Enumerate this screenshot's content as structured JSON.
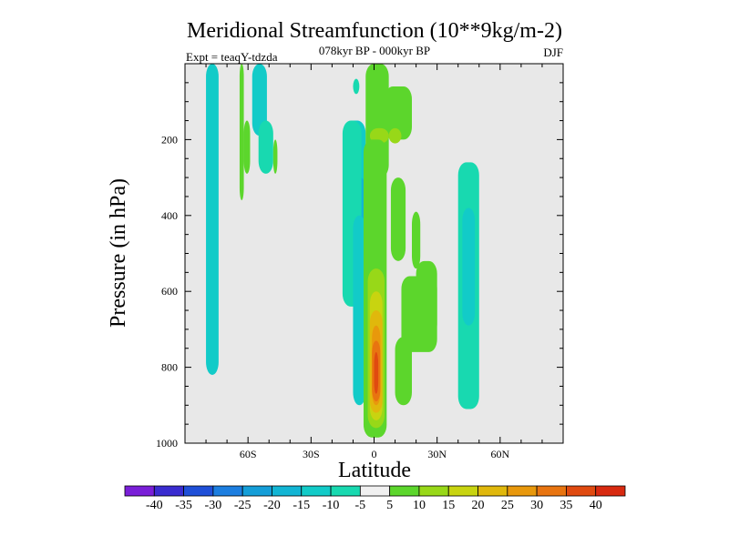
{
  "chart_data": {
    "type": "heatmap",
    "title": "Meridional Streamfunction (10**9kg/m-2)",
    "subtitle": "078kyr BP - 000kyr BP",
    "experiment_label": "Expt = teaqY-tdzda",
    "season": "DJF",
    "xlabel": "Latitude",
    "ylabel": "Pressure (in hPa)",
    "xlim": [
      -90,
      90
    ],
    "ylim": [
      1000,
      0
    ],
    "x_ticks": [
      {
        "value": -60,
        "label": "60S"
      },
      {
        "value": -30,
        "label": "30S"
      },
      {
        "value": 0,
        "label": "0"
      },
      {
        "value": 30,
        "label": "30N"
      },
      {
        "value": 60,
        "label": "60N"
      }
    ],
    "y_ticks": [
      {
        "value": 200,
        "label": "200"
      },
      {
        "value": 400,
        "label": "400"
      },
      {
        "value": 600,
        "label": "600"
      },
      {
        "value": 800,
        "label": "800"
      },
      {
        "value": 1000,
        "label": "1000"
      }
    ],
    "colorbar": {
      "levels": [
        "-40",
        "-35",
        "-30",
        "-25",
        "-20",
        "-15",
        "-10",
        "-5",
        "5",
        "10",
        "15",
        "20",
        "25",
        "30",
        "35",
        "40"
      ],
      "colors": [
        "#7a1fd8",
        "#3a2cd0",
        "#1f4fd8",
        "#1c7ee0",
        "#149ed8",
        "#12b5d4",
        "#12cbc8",
        "#18d9b0",
        "#f0f0f0",
        "#5cd62c",
        "#98d818",
        "#c8d410",
        "#e0b80c",
        "#e8980c",
        "#e87410",
        "#e04a10",
        "#d82a10"
      ]
    },
    "background_color": "#e8e8e8",
    "regions": [
      {
        "level": -10,
        "lat": [
          -80,
          -74
        ],
        "p": [
          0,
          820
        ]
      },
      {
        "level": -10,
        "lat": [
          -58,
          -51
        ],
        "p": [
          0,
          190
        ]
      },
      {
        "level": -5,
        "lat": [
          -55,
          -48
        ],
        "p": [
          150,
          290
        ]
      },
      {
        "level": 5,
        "lat": [
          -64,
          -62
        ],
        "p": [
          0,
          360
        ]
      },
      {
        "level": 5,
        "lat": [
          -62,
          -59
        ],
        "p": [
          150,
          290
        ]
      },
      {
        "level": 5,
        "lat": [
          -48,
          -46
        ],
        "p": [
          200,
          290
        ]
      },
      {
        "level": -10,
        "lat": [
          -14,
          -4
        ],
        "p": [
          150,
          470
        ]
      },
      {
        "level": -15,
        "lat": [
          -9,
          -4
        ],
        "p": [
          300,
          480
        ]
      },
      {
        "level": -5,
        "lat": [
          -15,
          -6
        ],
        "p": [
          150,
          640
        ]
      },
      {
        "level": -5,
        "lat": [
          -10,
          -7
        ],
        "p": [
          40,
          80
        ]
      },
      {
        "level": -10,
        "lat": [
          -10,
          -4
        ],
        "p": [
          400,
          900
        ]
      },
      {
        "level": 5,
        "lat": [
          -4,
          7
        ],
        "p": [
          0,
          300
        ]
      },
      {
        "level": 5,
        "lat": [
          5,
          18
        ],
        "p": [
          60,
          200
        ]
      },
      {
        "level": 10,
        "lat": [
          -2,
          7
        ],
        "p": [
          170,
          210
        ]
      },
      {
        "level": 10,
        "lat": [
          7,
          13
        ],
        "p": [
          170,
          210
        ]
      },
      {
        "level": 5,
        "lat": [
          -5,
          6
        ],
        "p": [
          200,
          985
        ]
      },
      {
        "level": 10,
        "lat": [
          -3,
          5
        ],
        "p": [
          540,
          960
        ]
      },
      {
        "level": 15,
        "lat": [
          -2,
          4
        ],
        "p": [
          600,
          940
        ]
      },
      {
        "level": 20,
        "lat": [
          -2,
          4
        ],
        "p": [
          650,
          920
        ]
      },
      {
        "level": 25,
        "lat": [
          -1,
          3
        ],
        "p": [
          690,
          900
        ]
      },
      {
        "level": 30,
        "lat": [
          -1,
          3
        ],
        "p": [
          730,
          890
        ]
      },
      {
        "level": 35,
        "lat": [
          0,
          2
        ],
        "p": [
          760,
          870
        ]
      },
      {
        "level": 5,
        "lat": [
          8,
          15
        ],
        "p": [
          300,
          520
        ]
      },
      {
        "level": 5,
        "lat": [
          18,
          22
        ],
        "p": [
          390,
          540
        ]
      },
      {
        "level": 5,
        "lat": [
          20,
          30
        ],
        "p": [
          520,
          720
        ]
      },
      {
        "level": 5,
        "lat": [
          13,
          30
        ],
        "p": [
          560,
          760
        ]
      },
      {
        "level": 5,
        "lat": [
          10,
          18
        ],
        "p": [
          720,
          900
        ]
      },
      {
        "level": -5,
        "lat": [
          40,
          50
        ],
        "p": [
          260,
          910
        ]
      },
      {
        "level": -10,
        "lat": [
          42,
          48
        ],
        "p": [
          380,
          690
        ]
      }
    ]
  }
}
